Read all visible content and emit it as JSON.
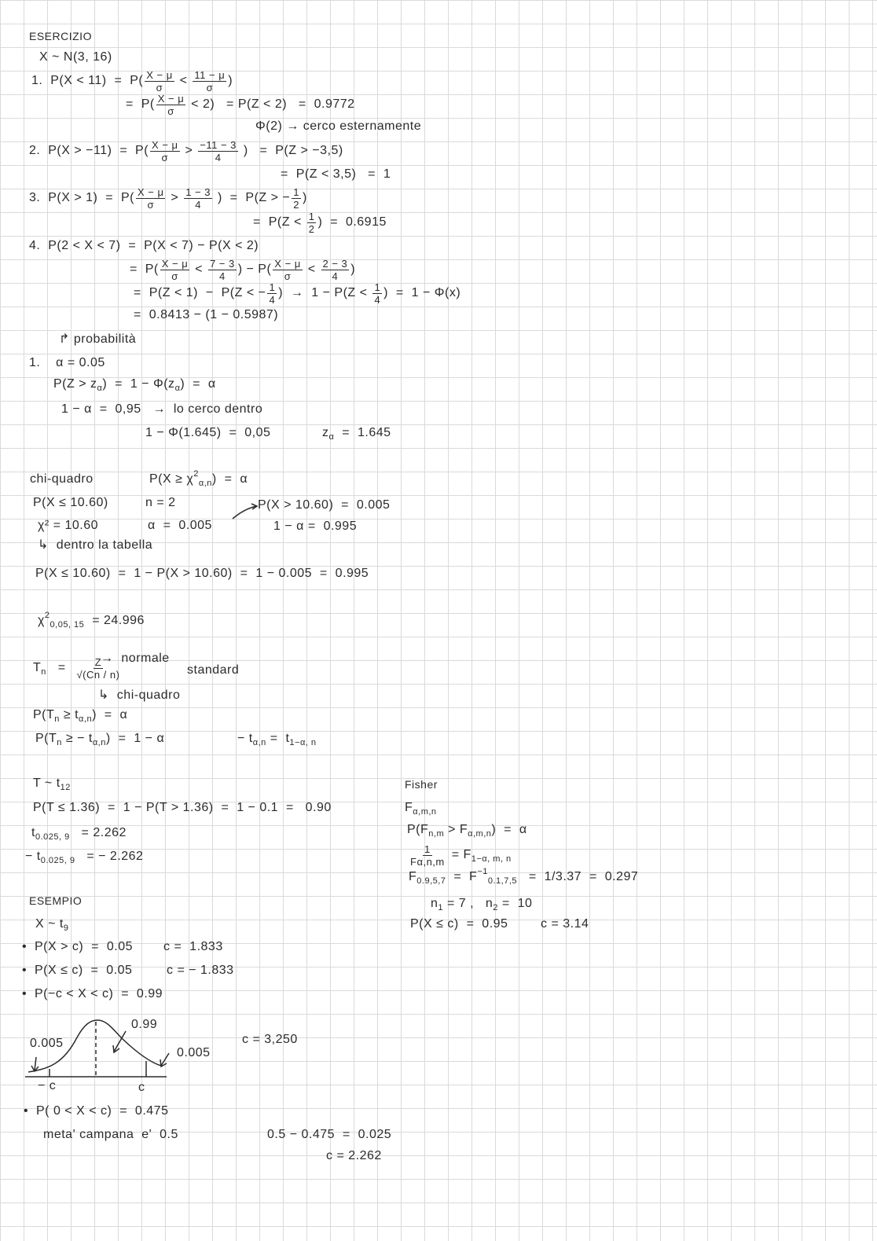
{
  "lines": [
    [
      "ESERCIZIO"
    ],
    [
      "X ~ N(3, 16)"
    ],
    [
      "1.  P(X < 11)  =  P(",
      {
        "num": "X − μ",
        "den": "σ"
      },
      " < ",
      {
        "num": "11 − μ",
        "den": "σ"
      },
      ")"
    ],
    [
      "=  P(",
      {
        "num": "X − μ",
        "den": "σ"
      },
      " < 2)",
      "   = P(Z < 2)   =  0.9772"
    ],
    [
      "Φ(2) → cerco esternamente"
    ],
    [
      "2.  P(X > −11)  =  P(",
      {
        "num": "X − μ",
        "den": "σ"
      },
      " > ",
      {
        "num": "−11 − 3",
        "den": "4"
      },
      " )   =  P(Z > −3,5)"
    ],
    [
      "=  P(Z < 3,5)   =  1"
    ],
    [
      "3.  P(X > 1)  =  P(",
      {
        "num": "X − μ",
        "den": "σ"
      },
      " > ",
      {
        "num": "1 − 3",
        "den": "4"
      },
      " )  =  P(Z > −",
      {
        "num": "1",
        "den": "2"
      },
      ")"
    ],
    [
      "=  P(Z < ",
      {
        "num": "1",
        "den": "2"
      },
      ")  =  0.6915"
    ],
    [
      "4.  P(2 < X < 7)  =  P(X < 7) − P(X < 2)"
    ],
    [
      "=  P(",
      {
        "num": "X − μ",
        "den": "σ"
      },
      " < ",
      {
        "num": "7 − 3",
        "den": "4"
      },
      ") − P(",
      {
        "num": "X − μ",
        "den": "σ"
      },
      " < ",
      {
        "num": "2 − 3",
        "den": "4"
      },
      ")"
    ],
    [
      "=  P(Z < 1)  −  P(Z < −",
      {
        "num": "1",
        "den": "4"
      },
      ")  →  1 − P(Z < ",
      {
        "num": "1",
        "den": "4"
      },
      ")  =  1 − Φ(x)"
    ],
    [
      "=  0.8413 − (1 − 0.5987)"
    ],
    [
      "↱ probabilità"
    ],
    [
      "1.    α = 0.05"
    ],
    [
      "P(Z > z",
      {
        "sub": "α"
      },
      ")  =  1 − Φ(z",
      {
        "sub": "α"
      },
      ")  =  α"
    ],
    [
      "1 − α  =  0,95   →  lo cerco dentro"
    ],
    [
      "1 − Φ(1.645)  =  0,05"
    ],
    [
      "z",
      {
        "sub": "α"
      },
      "  =  1.645"
    ],
    [
      "chi-quadro"
    ],
    [
      "P(X ≥ χ",
      {
        "sup": "2"
      },
      {
        "sub": "α,n"
      },
      ")  =  α"
    ],
    [
      "P(X ≤ 10.60)"
    ],
    [
      "n = 2"
    ],
    [
      "P(X > 10.60)  =  0.005"
    ],
    [
      "χ² = 10.60"
    ],
    [
      "α  =  0.005"
    ],
    [
      "1 − α =  0.995"
    ],
    [
      "↳  dentro la tabella"
    ],
    [
      "P(X ≤ 10.60)  =  1 − P(X > 10.60)  =  1 − 0.005  =  0.995"
    ],
    [
      "χ",
      {
        "sup": "2"
      },
      {
        "sub": "0,05, 15"
      },
      "  = 24.996"
    ],
    [
      "T",
      {
        "sub": "n"
      },
      "   =  ",
      {
        "num": "Z",
        "den": "√(Cn / n)"
      }
    ],
    [
      "→  normale"
    ],
    [
      "standard"
    ],
    [
      "↳  chi-quadro"
    ],
    [
      "P(T",
      {
        "sub": "n"
      },
      " ≥ t",
      {
        "sub": "α,n"
      },
      ")  =  α"
    ],
    [
      "P(T",
      {
        "sub": "n"
      },
      " ≥ − t",
      {
        "sub": "α,n"
      },
      ")  =  1 − α"
    ],
    [
      "− t",
      {
        "sub": "α,n"
      },
      " =  t",
      {
        "sub": "1−α, n"
      }
    ],
    [
      "T ~ t",
      {
        "sub": "12"
      }
    ],
    [
      "P(T ≤ 1.36)  =  1 − P(T > 1.36)  =  1 − 0.1  =   0.90"
    ],
    [
      "t",
      {
        "sub": "0.025, 9"
      },
      "   = 2.262"
    ],
    [
      "− t",
      {
        "sub": "0.025, 9"
      },
      "   = − 2.262"
    ],
    [
      "ESEMPIO"
    ],
    [
      "X ~ t",
      {
        "sub": "9"
      }
    ],
    [
      "•  P(X > c)  =  0.05"
    ],
    [
      "c =  1.833"
    ],
    [
      "•  P(X ≤ c)  =  0.05"
    ],
    [
      "c = − 1.833"
    ],
    [
      "•  P(−c < X < c)  =  0.99"
    ],
    [
      "0.005"
    ],
    [
      "0.99"
    ],
    [
      "0.005"
    ],
    [
      "− c"
    ],
    [
      "c"
    ],
    [
      "c = 3,250"
    ],
    [
      "•  P( 0 < X < c)  =  0.475"
    ],
    [
      "meta' campana  e'  0.5"
    ],
    [
      "0.5 − 0.475  =  0.025"
    ],
    [
      "c = 2.262"
    ],
    [
      "Fisher"
    ],
    [
      "F",
      {
        "sub": "α,m,n"
      }
    ],
    [
      "P(F",
      {
        "sub": "n,m"
      },
      " > F",
      {
        "sub": "α,m,n"
      },
      ")  =  α"
    ],
    [
      {
        "num": "1",
        "den": "Fα,n,m"
      },
      " = F",
      {
        "sub": "1−α, m, n"
      }
    ],
    [
      "F",
      {
        "sub": "0.9,5,7"
      },
      "  =  F",
      {
        "sup": "−1"
      },
      {
        "sub": "0.1,7,5"
      },
      "   =  1/3.37  =  0.297"
    ],
    [
      "n",
      {
        "sub": "1"
      },
      " = 7 ,   n",
      {
        "sub": "2"
      },
      " =  10"
    ],
    [
      "P(X ≤ c)  =  0.95"
    ],
    [
      "c = 3.14"
    ]
  ],
  "ink_color": "#2b2b2b",
  "grid_color": "#dadada"
}
